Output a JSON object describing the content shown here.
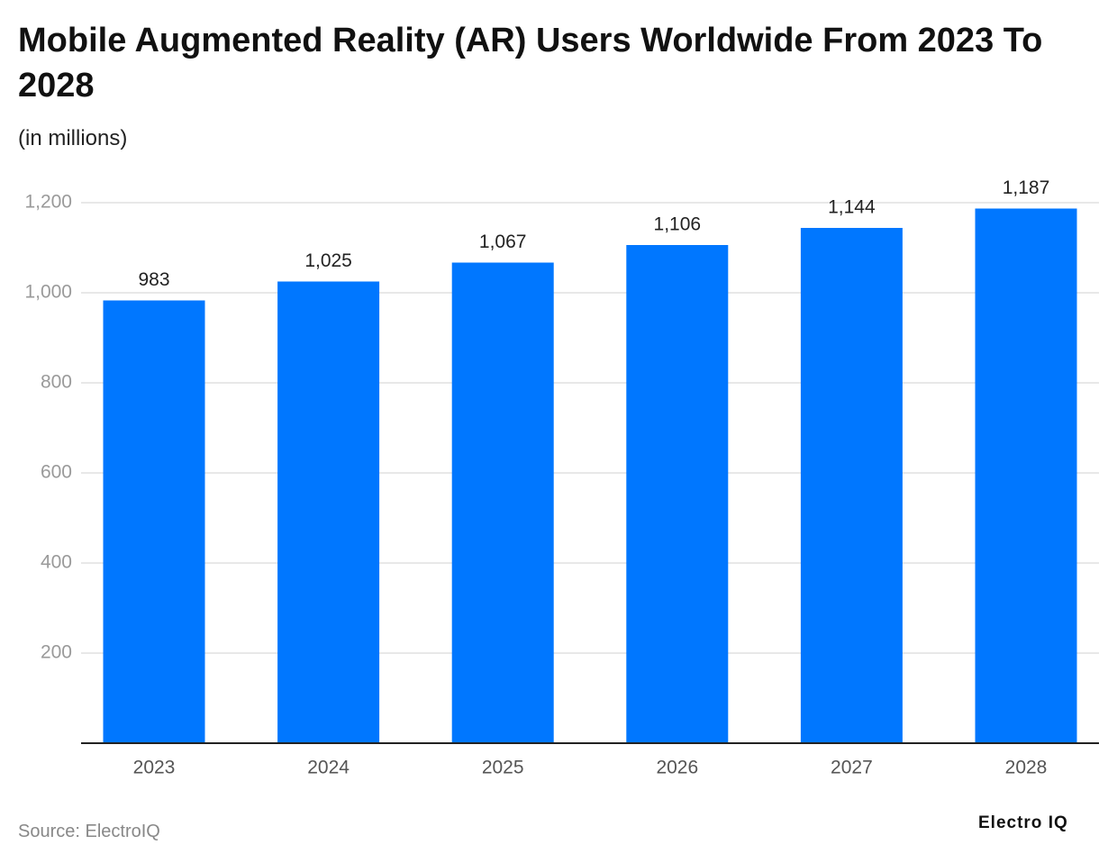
{
  "chart_data": {
    "type": "bar",
    "title": "Mobile Augmented Reality (AR) Users Worldwide From 2023 To 2028",
    "subtitle": "(in millions)",
    "source": "Source: ElectroIQ",
    "brand": "Electro IQ",
    "categories": [
      "2023",
      "2024",
      "2025",
      "2026",
      "2027",
      "2028"
    ],
    "values": [
      983,
      1025,
      1067,
      1106,
      1144,
      1187
    ],
    "value_labels": [
      "983",
      "1,025",
      "1,067",
      "1,106",
      "1,144",
      "1,187"
    ],
    "color": "#0077ff",
    "ylim": [
      0,
      1200
    ],
    "yticks": [
      200,
      400,
      600,
      800,
      {
        "value": 1000,
        "label": "1,000"
      },
      {
        "value": 1200,
        "label": "1,200"
      }
    ],
    "grid": true
  }
}
